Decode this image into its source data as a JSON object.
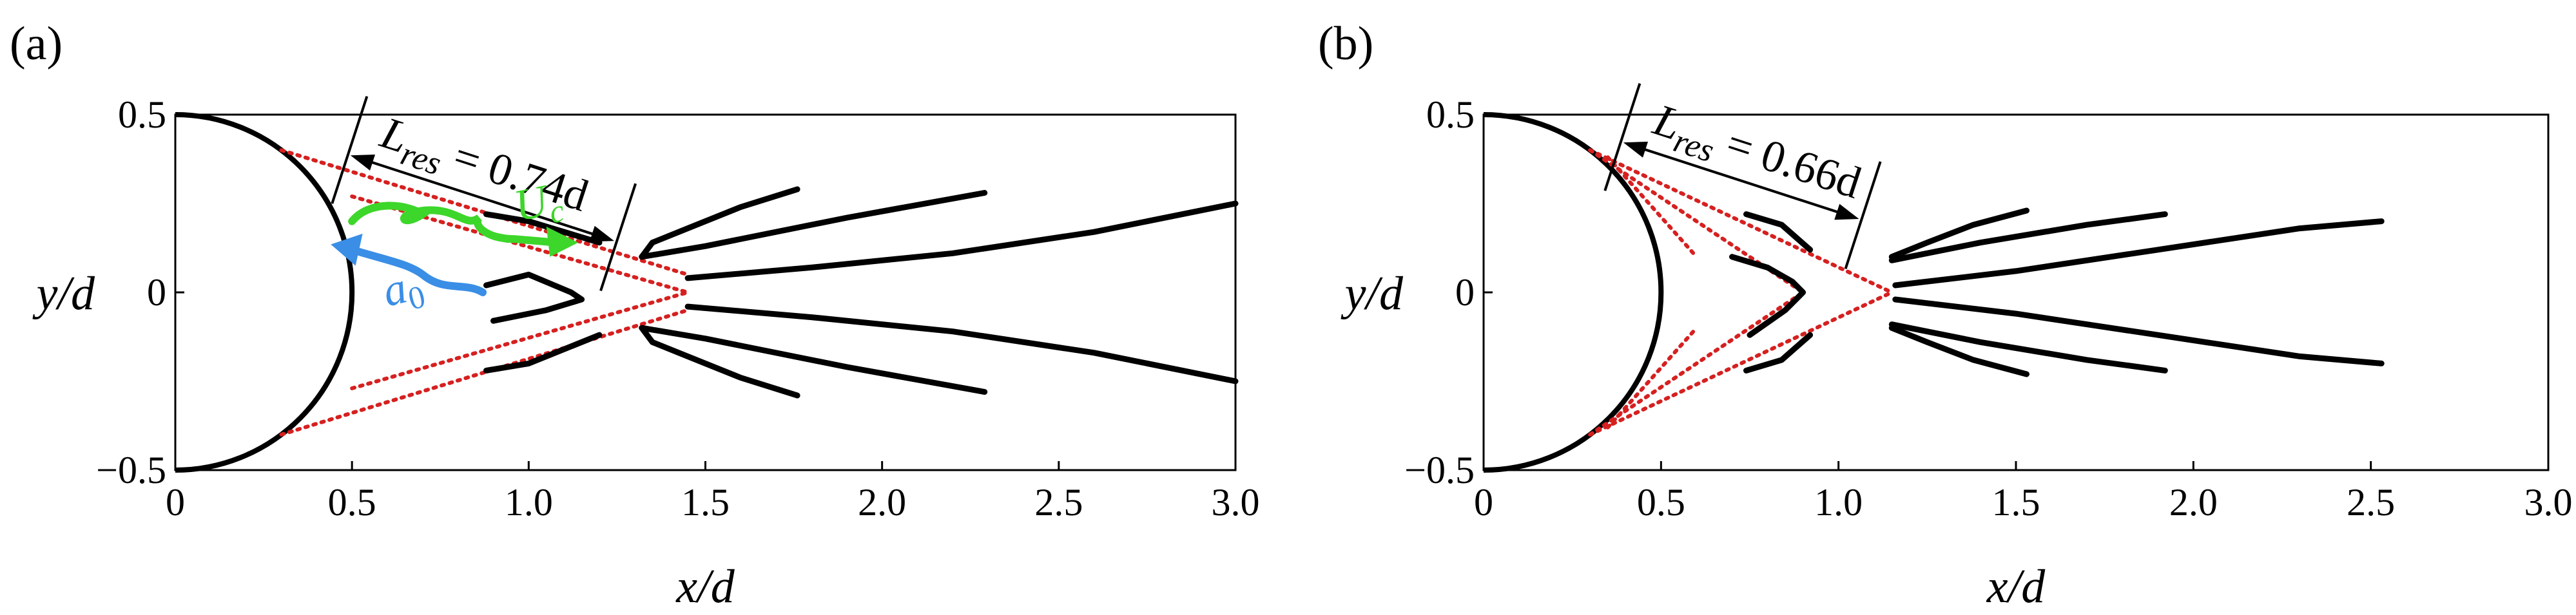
{
  "figure": {
    "panels": [
      {
        "label": "(a)",
        "annotation": {
          "text": "L_res = 0.74d",
          "sub": "res",
          "value": "0.74d",
          "L": 0.74
        }
      },
      {
        "label": "(b)",
        "annotation": {
          "text": "L_res = 0.66d",
          "sub": "res",
          "value": "0.66d",
          "L": 0.66
        }
      }
    ],
    "labels": {
      "uc_main": "U",
      "uc_sub": "c",
      "a0_main": "a",
      "a0_sub": "0"
    },
    "colors": {
      "body": "#000000",
      "ray": "#d62020",
      "uc": "#3dd62a",
      "a0": "#3a8ee6"
    }
  },
  "chart_data": [
    {
      "type": "line",
      "panel": "(a)",
      "xlabel": "x/d",
      "ylabel": "y/d",
      "xlim": [
        0,
        3.0
      ],
      "ylim": [
        -0.5,
        0.5
      ],
      "xticks": [
        "0",
        "0.5",
        "1.0",
        "1.5",
        "2.0",
        "2.5",
        "3.0"
      ],
      "yticks": [
        "0.5",
        "0",
        "−0.5"
      ],
      "xtick_values": [
        0,
        0.5,
        1.0,
        1.5,
        2.0,
        2.5,
        3.0
      ],
      "ytick_values": [
        0.5,
        0,
        -0.5
      ],
      "circle": {
        "cx": 0,
        "cy": 0,
        "r": 0.5
      },
      "rays": [
        {
          "x": [
            0.3,
            1.45
          ],
          "y": [
            0.4,
            0.05
          ]
        },
        {
          "x": [
            0.5,
            1.45
          ],
          "y": [
            0.27,
            0.0
          ]
        },
        {
          "x": [
            0.5,
            1.45
          ],
          "y": [
            -0.27,
            0.0
          ]
        },
        {
          "x": [
            0.3,
            1.45
          ],
          "y": [
            -0.4,
            -0.05
          ]
        }
      ],
      "series": [
        {
          "x": [
            0.88,
            1.0,
            1.2
          ],
          "y": [
            0.22,
            0.2,
            0.14
          ]
        },
        {
          "x": [
            0.88,
            1.0,
            1.12,
            1.15,
            1.05,
            0.9
          ],
          "y": [
            0.02,
            0.05,
            0.0,
            -0.02,
            -0.05,
            -0.08
          ]
        },
        {
          "x": [
            0.88,
            1.0,
            1.2
          ],
          "y": [
            -0.22,
            -0.2,
            -0.12
          ]
        },
        {
          "x": [
            1.76,
            1.6,
            1.45,
            1.35,
            1.32
          ],
          "y": [
            0.29,
            0.24,
            0.18,
            0.14,
            0.1
          ]
        },
        {
          "x": [
            1.32,
            1.5,
            1.9,
            2.29
          ],
          "y": [
            0.1,
            0.13,
            0.21,
            0.28
          ]
        },
        {
          "x": [
            1.45,
            1.8,
            2.2,
            2.6,
            3.0
          ],
          "y": [
            0.04,
            0.07,
            0.11,
            0.17,
            0.25
          ]
        },
        {
          "x": [
            1.45,
            1.8,
            2.2,
            2.6,
            3.0
          ],
          "y": [
            -0.04,
            -0.07,
            -0.11,
            -0.17,
            -0.25
          ]
        },
        {
          "x": [
            1.32,
            1.5,
            1.9,
            2.29
          ],
          "y": [
            -0.1,
            -0.13,
            -0.21,
            -0.28
          ]
        },
        {
          "x": [
            1.76,
            1.6,
            1.45,
            1.35,
            1.32
          ],
          "y": [
            -0.29,
            -0.24,
            -0.18,
            -0.14,
            -0.1
          ]
        }
      ]
    },
    {
      "type": "line",
      "panel": "(b)",
      "xlabel": "x/d",
      "ylabel": "y/d",
      "xlim": [
        0,
        3.0
      ],
      "ylim": [
        -0.5,
        0.5
      ],
      "xticks": [
        "0",
        "0.5",
        "1.0",
        "1.5",
        "2.0",
        "2.5",
        "3.0"
      ],
      "yticks": [
        "0.5",
        "0",
        "−0.5"
      ],
      "xtick_values": [
        0,
        0.5,
        1.0,
        1.5,
        2.0,
        2.5,
        3.0
      ],
      "ytick_values": [
        0.5,
        0,
        -0.5
      ],
      "circle": {
        "cx": 0,
        "cy": 0,
        "r": 0.5
      },
      "rays": [
        {
          "x": [
            0.3,
            1.15
          ],
          "y": [
            0.4,
            0.0
          ]
        },
        {
          "x": [
            0.3,
            1.15
          ],
          "y": [
            -0.4,
            0.0
          ]
        },
        {
          "x": [
            0.3,
            0.9
          ],
          "y": [
            0.4,
            0.0
          ]
        },
        {
          "x": [
            0.3,
            0.9
          ],
          "y": [
            -0.4,
            0.0
          ]
        },
        {
          "x": [
            0.35,
            0.6
          ],
          "y": [
            0.38,
            0.1
          ]
        },
        {
          "x": [
            0.35,
            0.6
          ],
          "y": [
            -0.38,
            -0.1
          ]
        }
      ],
      "series": [
        {
          "x": [
            0.74,
            0.84,
            0.92
          ],
          "y": [
            0.22,
            0.19,
            0.12
          ]
        },
        {
          "x": [
            0.7,
            0.8,
            0.87,
            0.9,
            0.85,
            0.75
          ],
          "y": [
            0.1,
            0.07,
            0.03,
            0.0,
            -0.05,
            -0.12
          ]
        },
        {
          "x": [
            0.74,
            0.84,
            0.92
          ],
          "y": [
            -0.22,
            -0.19,
            -0.12
          ]
        },
        {
          "x": [
            1.53,
            1.38,
            1.25,
            1.15
          ],
          "y": [
            0.23,
            0.19,
            0.14,
            0.1
          ]
        },
        {
          "x": [
            1.15,
            1.4,
            1.7,
            1.92
          ],
          "y": [
            0.09,
            0.14,
            0.19,
            0.22
          ]
        },
        {
          "x": [
            1.16,
            1.5,
            1.9,
            2.3,
            2.53
          ],
          "y": [
            0.02,
            0.06,
            0.12,
            0.18,
            0.2
          ]
        },
        {
          "x": [
            1.16,
            1.5,
            1.9,
            2.3,
            2.53
          ],
          "y": [
            -0.02,
            -0.06,
            -0.12,
            -0.18,
            -0.2
          ]
        },
        {
          "x": [
            1.15,
            1.4,
            1.7,
            1.92
          ],
          "y": [
            -0.09,
            -0.14,
            -0.19,
            -0.22
          ]
        },
        {
          "x": [
            1.53,
            1.38,
            1.25,
            1.15
          ],
          "y": [
            -0.23,
            -0.19,
            -0.14,
            -0.1
          ]
        }
      ]
    }
  ]
}
